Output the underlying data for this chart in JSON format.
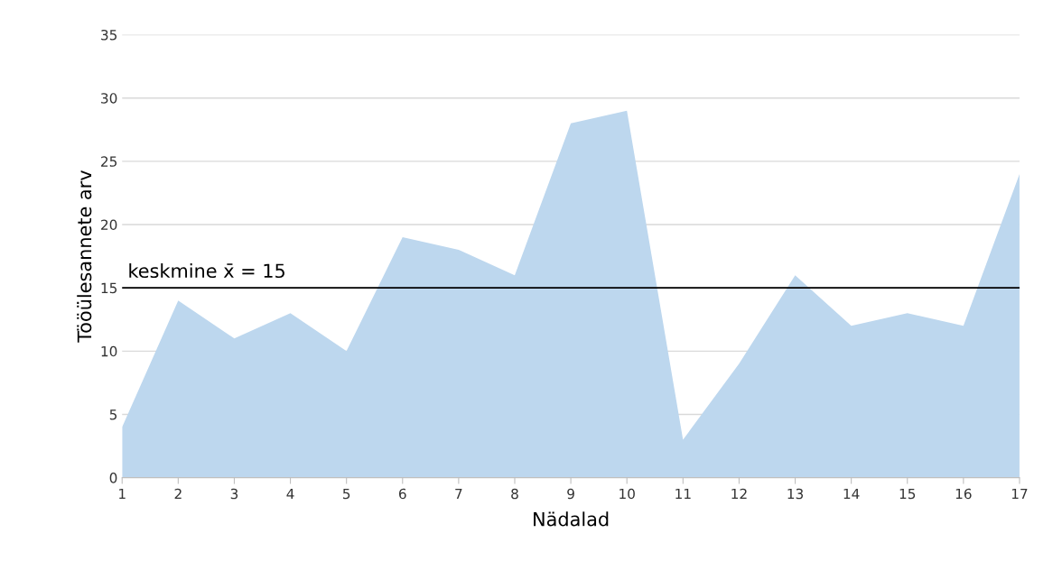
{
  "chart_data": {
    "type": "area",
    "x": [
      1,
      2,
      3,
      4,
      5,
      6,
      7,
      8,
      9,
      10,
      11,
      12,
      13,
      14,
      15,
      16,
      17
    ],
    "series": [
      {
        "color": "#bdd7ee",
        "values": [
          4,
          14,
          11,
          13,
          10,
          19,
          18,
          16,
          28,
          29,
          3,
          9,
          16,
          12,
          13,
          12,
          24
        ]
      }
    ],
    "xlabel": "Nädalad",
    "ylabel": "Tööülesannete arv",
    "xlim": [
      1,
      17
    ],
    "xticks": [
      1,
      2,
      3,
      4,
      5,
      6,
      7,
      8,
      9,
      10,
      11,
      12,
      13,
      14,
      15,
      16,
      17
    ],
    "ylim": [
      0,
      35
    ],
    "yticks": [
      0,
      5,
      10,
      15,
      20,
      25,
      30,
      35
    ],
    "grid": "y",
    "ref_lines": [
      {
        "axis": "y",
        "value": 15,
        "label": "keskmine x̄ = 15",
        "color": "#000000",
        "line_style": "solid"
      }
    ]
  }
}
